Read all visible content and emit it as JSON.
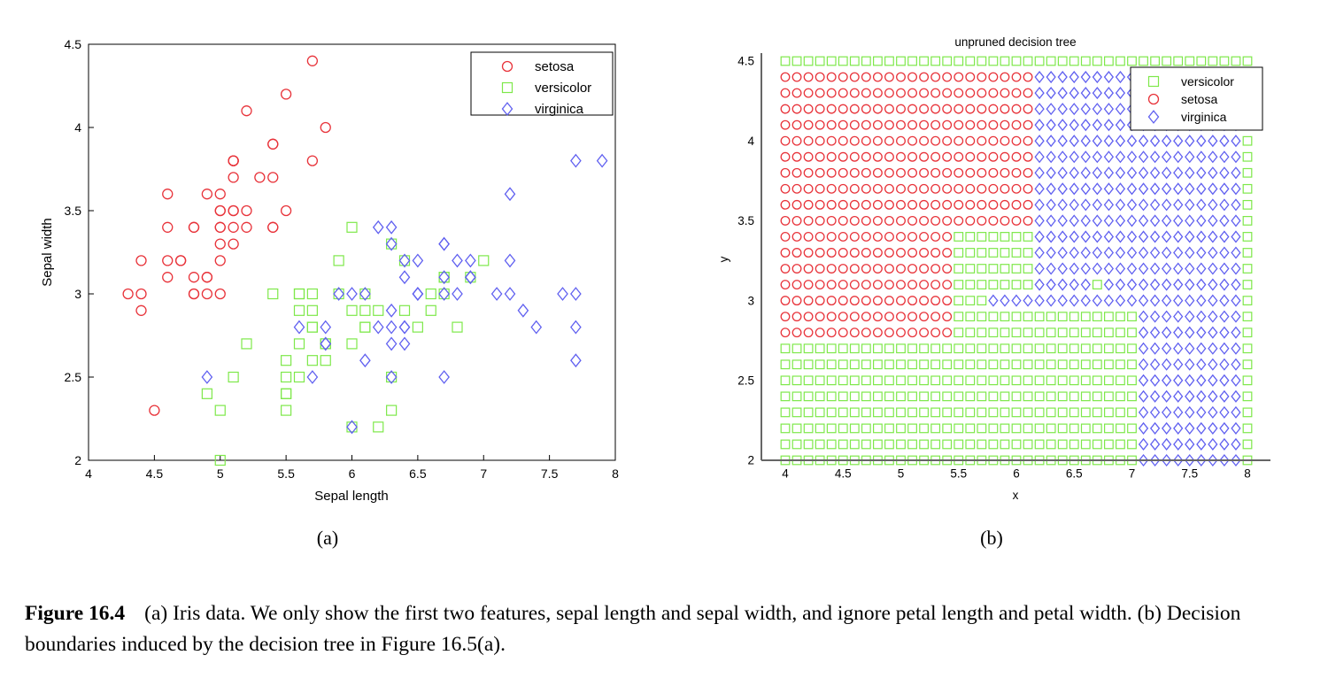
{
  "colors": {
    "setosa": "#e8333a",
    "versicolor": "#7ee84a",
    "virginica": "#6060f0",
    "virginica_dark": "#3a4a8a"
  },
  "chart_data": [
    {
      "type": "scatter",
      "panel_label": "(a)",
      "title": "",
      "xlabel": "Sepal length",
      "ylabel": "Sepal width",
      "xlim": [
        4,
        8
      ],
      "ylim": [
        2,
        4.5
      ],
      "xticks": [
        "4",
        "4.5",
        "5",
        "5.5",
        "6",
        "6.5",
        "7",
        "7.5",
        "8"
      ],
      "yticks": [
        "2",
        "2.5",
        "3",
        "3.5",
        "4",
        "4.5"
      ],
      "legend_position": "top-right",
      "series": [
        {
          "name": "setosa",
          "marker": "circle",
          "points": [
            [
              5.1,
              3.5
            ],
            [
              4.9,
              3.0
            ],
            [
              4.7,
              3.2
            ],
            [
              4.6,
              3.1
            ],
            [
              5.0,
              3.6
            ],
            [
              5.4,
              3.9
            ],
            [
              4.6,
              3.4
            ],
            [
              5.0,
              3.4
            ],
            [
              4.4,
              2.9
            ],
            [
              4.9,
              3.1
            ],
            [
              5.4,
              3.7
            ],
            [
              4.8,
              3.4
            ],
            [
              4.8,
              3.0
            ],
            [
              4.3,
              3.0
            ],
            [
              5.8,
              4.0
            ],
            [
              5.7,
              4.4
            ],
            [
              5.4,
              3.9
            ],
            [
              5.1,
              3.5
            ],
            [
              5.7,
              3.8
            ],
            [
              5.1,
              3.8
            ],
            [
              5.4,
              3.4
            ],
            [
              5.1,
              3.7
            ],
            [
              4.6,
              3.6
            ],
            [
              5.1,
              3.3
            ],
            [
              4.8,
              3.4
            ],
            [
              5.0,
              3.0
            ],
            [
              5.0,
              3.4
            ],
            [
              5.2,
              3.5
            ],
            [
              5.2,
              3.4
            ],
            [
              4.7,
              3.2
            ],
            [
              4.8,
              3.1
            ],
            [
              5.4,
              3.4
            ],
            [
              5.2,
              4.1
            ],
            [
              5.5,
              4.2
            ],
            [
              4.9,
              3.1
            ],
            [
              5.0,
              3.2
            ],
            [
              5.5,
              3.5
            ],
            [
              4.9,
              3.6
            ],
            [
              4.4,
              3.0
            ],
            [
              5.1,
              3.4
            ],
            [
              5.0,
              3.5
            ],
            [
              4.5,
              2.3
            ],
            [
              4.4,
              3.2
            ],
            [
              5.0,
              3.5
            ],
            [
              5.1,
              3.8
            ],
            [
              4.8,
              3.0
            ],
            [
              5.1,
              3.8
            ],
            [
              4.6,
              3.2
            ],
            [
              5.3,
              3.7
            ],
            [
              5.0,
              3.3
            ]
          ]
        },
        {
          "name": "versicolor",
          "marker": "square",
          "points": [
            [
              7.0,
              3.2
            ],
            [
              6.4,
              3.2
            ],
            [
              6.9,
              3.1
            ],
            [
              5.5,
              2.3
            ],
            [
              6.5,
              2.8
            ],
            [
              5.7,
              2.8
            ],
            [
              6.3,
              3.3
            ],
            [
              4.9,
              2.4
            ],
            [
              6.6,
              2.9
            ],
            [
              5.2,
              2.7
            ],
            [
              5.0,
              2.0
            ],
            [
              5.9,
              3.0
            ],
            [
              6.0,
              2.2
            ],
            [
              6.1,
              2.9
            ],
            [
              5.6,
              2.9
            ],
            [
              6.7,
              3.1
            ],
            [
              5.6,
              3.0
            ],
            [
              5.8,
              2.7
            ],
            [
              6.2,
              2.2
            ],
            [
              5.6,
              2.5
            ],
            [
              5.9,
              3.2
            ],
            [
              6.1,
              2.8
            ],
            [
              6.3,
              2.5
            ],
            [
              6.1,
              2.8
            ],
            [
              6.4,
              2.9
            ],
            [
              6.6,
              3.0
            ],
            [
              6.8,
              2.8
            ],
            [
              6.7,
              3.0
            ],
            [
              6.0,
              2.9
            ],
            [
              5.7,
              2.6
            ],
            [
              5.5,
              2.4
            ],
            [
              5.5,
              2.4
            ],
            [
              5.8,
              2.7
            ],
            [
              6.0,
              2.7
            ],
            [
              5.4,
              3.0
            ],
            [
              6.0,
              3.4
            ],
            [
              6.7,
              3.1
            ],
            [
              6.3,
              2.3
            ],
            [
              5.6,
              3.0
            ],
            [
              5.5,
              2.5
            ],
            [
              5.5,
              2.6
            ],
            [
              6.1,
              3.0
            ],
            [
              5.8,
              2.6
            ],
            [
              5.0,
              2.3
            ],
            [
              5.6,
              2.7
            ],
            [
              5.7,
              3.0
            ],
            [
              5.7,
              2.9
            ],
            [
              6.2,
              2.9
            ],
            [
              5.1,
              2.5
            ],
            [
              5.7,
              2.8
            ]
          ]
        },
        {
          "name": "virginica",
          "marker": "diamond",
          "points": [
            [
              6.3,
              3.3
            ],
            [
              5.8,
              2.7
            ],
            [
              7.1,
              3.0
            ],
            [
              6.3,
              2.9
            ],
            [
              6.5,
              3.0
            ],
            [
              7.6,
              3.0
            ],
            [
              4.9,
              2.5
            ],
            [
              7.3,
              2.9
            ],
            [
              6.7,
              2.5
            ],
            [
              7.2,
              3.6
            ],
            [
              6.5,
              3.2
            ],
            [
              6.4,
              2.7
            ],
            [
              6.8,
              3.0
            ],
            [
              5.7,
              2.5
            ],
            [
              5.8,
              2.8
            ],
            [
              6.4,
              3.2
            ],
            [
              6.5,
              3.0
            ],
            [
              7.7,
              3.8
            ],
            [
              7.7,
              2.6
            ],
            [
              6.0,
              2.2
            ],
            [
              6.9,
              3.2
            ],
            [
              5.6,
              2.8
            ],
            [
              7.7,
              2.8
            ],
            [
              6.3,
              2.7
            ],
            [
              6.7,
              3.3
            ],
            [
              7.2,
              3.2
            ],
            [
              6.2,
              2.8
            ],
            [
              6.1,
              3.0
            ],
            [
              6.4,
              2.8
            ],
            [
              7.2,
              3.0
            ],
            [
              7.4,
              2.8
            ],
            [
              7.9,
              3.8
            ],
            [
              6.4,
              2.8
            ],
            [
              6.3,
              2.8
            ],
            [
              6.1,
              2.6
            ],
            [
              7.7,
              3.0
            ],
            [
              6.3,
              3.4
            ],
            [
              6.4,
              3.1
            ],
            [
              6.0,
              3.0
            ],
            [
              6.9,
              3.1
            ],
            [
              6.7,
              3.1
            ],
            [
              6.9,
              3.1
            ],
            [
              5.8,
              2.7
            ],
            [
              6.8,
              3.2
            ],
            [
              6.7,
              3.3
            ],
            [
              6.7,
              3.0
            ],
            [
              6.3,
              2.5
            ],
            [
              6.5,
              3.0
            ],
            [
              6.2,
              3.4
            ],
            [
              5.9,
              3.0
            ]
          ]
        }
      ]
    },
    {
      "type": "scatter",
      "panel_label": "(b)",
      "title": "unpruned decision tree",
      "xlabel": "x",
      "ylabel": "y",
      "xlim": [
        3.8,
        8.1
      ],
      "ylim": [
        2,
        4.6
      ],
      "xticks": [
        "4",
        "4.5",
        "5",
        "5.5",
        "6",
        "6.5",
        "7",
        "7.5",
        "8"
      ],
      "yticks": [
        "2",
        "2.5",
        "3",
        "3.5",
        "4",
        "4.5"
      ],
      "legend_position": "top-right",
      "grid": {
        "x_start": 4,
        "x_end": 8,
        "x_step": 0.1,
        "y_start": 2,
        "y_end": 4.5,
        "y_step": 0.1
      },
      "series": [
        {
          "name": "versicolor",
          "marker": "square"
        },
        {
          "name": "setosa",
          "marker": "circle"
        },
        {
          "name": "virginica",
          "marker": "diamond"
        }
      ],
      "decision_regions": [
        {
          "class": "setosa",
          "x": [
            4.0,
            5.45
          ],
          "y": [
            2.75,
            4.5
          ]
        },
        {
          "class": "setosa",
          "x": [
            5.45,
            6.15
          ],
          "y": [
            3.45,
            4.5
          ]
        },
        {
          "class": "virginica",
          "x": [
            6.15,
            7.05
          ],
          "y": [
            3.45,
            4.5
          ]
        },
        {
          "class": "versicolor",
          "x": [
            7.05,
            7.15
          ],
          "y": [
            4.45,
            4.5
          ]
        },
        {
          "class": "versicolor",
          "x": [
            7.05,
            7.15
          ],
          "y": [
            4.05,
            4.25
          ]
        },
        {
          "class": "virginica",
          "x": [
            7.05,
            8.0
          ],
          "y": [
            3.45,
            4.5
          ]
        },
        {
          "class": "versicolor",
          "x": [
            5.45,
            6.15
          ],
          "y": [
            3.05,
            3.45
          ]
        },
        {
          "class": "virginica",
          "x": [
            6.15,
            8.0
          ],
          "y": [
            3.05,
            3.45
          ]
        },
        {
          "class": "versicolor",
          "x": [
            6.65,
            6.75
          ],
          "y": [
            3.05,
            3.15
          ]
        },
        {
          "class": "versicolor",
          "x": [
            5.45,
            5.75
          ],
          "y": [
            2.95,
            3.05
          ]
        },
        {
          "class": "virginica",
          "x": [
            5.75,
            8.0
          ],
          "y": [
            2.95,
            3.05
          ]
        },
        {
          "class": "versicolor",
          "x": [
            5.45,
            7.05
          ],
          "y": [
            2.45,
            2.95
          ]
        },
        {
          "class": "virginica",
          "x": [
            6.15,
            6.45
          ],
          "y": [
            2.35,
            2.75
          ]
        },
        {
          "class": "virginica",
          "x": [
            6.65,
            7.05
          ],
          "y": [
            2.45,
            2.75
          ]
        },
        {
          "class": "virginica",
          "x": [
            7.05,
            8.0
          ],
          "y": [
            2.45,
            2.95
          ]
        },
        {
          "class": "versicolor",
          "x": [
            4.0,
            7.05
          ],
          "y": [
            2.0,
            2.75
          ]
        },
        {
          "class": "virginica",
          "x": [
            7.05,
            8.0
          ],
          "y": [
            2.0,
            2.45
          ]
        }
      ]
    }
  ],
  "caption": {
    "label": "Figure 16.4",
    "text": "(a) Iris data. We only show the first two features, sepal length and sepal width, and ignore petal length and petal width. (b) Decision boundaries induced by the decision tree in Figure 16.5(a)."
  }
}
